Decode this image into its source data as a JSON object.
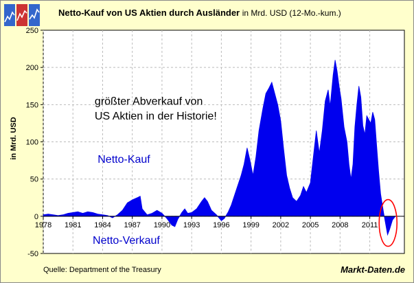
{
  "title": {
    "main": "Netto-Kauf von US Aktien durch Ausländer",
    "sub": "in Mrd. USD (12-Mo.-kum.)"
  },
  "source": "Quelle: Department of the Treasury",
  "brand": "Markt-Daten.de",
  "colors": {
    "background": "#ffffcc",
    "plot_bg": "#ffffff",
    "series": "#0000ee",
    "label": "#0000cc",
    "highlight": "#ff0000"
  },
  "chart_data": {
    "type": "area",
    "title": "Netto-Kauf von US Aktien durch Ausländer in Mrd. USD (12-Mo.-kum.)",
    "ylabel": "in Mrd. USD",
    "xlabel": "",
    "ylim": [
      -50,
      250
    ],
    "xlim": [
      1978,
      2014.5
    ],
    "yticks": [
      -50,
      0,
      50,
      100,
      150,
      200,
      250
    ],
    "xticks": [
      "1978",
      "1981",
      "1984",
      "1987",
      "1990",
      "1993",
      "1996",
      "1999",
      "2002",
      "2005",
      "2008",
      "2011"
    ],
    "grid": true,
    "annotations": [
      {
        "text": "größter Abverkauf von",
        "x": 1983.2,
        "y": 150
      },
      {
        "text": "US Aktien in der Historie!",
        "x": 1983.2,
        "y": 130
      },
      {
        "text": "Netto-Kauf",
        "x": 1983.5,
        "y": 72
      },
      {
        "text": "Netto-Verkauf",
        "x": 1983.0,
        "y": -37
      }
    ],
    "series": [
      {
        "points": [
          [
            1978.0,
            2
          ],
          [
            1978.5,
            3
          ],
          [
            1979.0,
            2
          ],
          [
            1979.5,
            1
          ],
          [
            1980.0,
            2
          ],
          [
            1980.5,
            4
          ],
          [
            1981.0,
            5
          ],
          [
            1981.5,
            6
          ],
          [
            1982.0,
            4
          ],
          [
            1982.5,
            6
          ],
          [
            1983.0,
            5
          ],
          [
            1983.5,
            3
          ],
          [
            1984.0,
            2
          ],
          [
            1984.5,
            1
          ],
          [
            1985.0,
            -2
          ],
          [
            1985.5,
            2
          ],
          [
            1986.0,
            8
          ],
          [
            1986.5,
            18
          ],
          [
            1987.0,
            22
          ],
          [
            1987.5,
            25
          ],
          [
            1987.8,
            27
          ],
          [
            1988.0,
            10
          ],
          [
            1988.5,
            2
          ],
          [
            1989.0,
            4
          ],
          [
            1989.5,
            8
          ],
          [
            1990.0,
            4
          ],
          [
            1990.5,
            -3
          ],
          [
            1991.0,
            -12
          ],
          [
            1991.3,
            -14
          ],
          [
            1991.6,
            -4
          ],
          [
            1992.0,
            5
          ],
          [
            1992.3,
            10
          ],
          [
            1992.6,
            4
          ],
          [
            1993.0,
            5
          ],
          [
            1993.5,
            10
          ],
          [
            1994.0,
            20
          ],
          [
            1994.3,
            25
          ],
          [
            1994.6,
            20
          ],
          [
            1995.0,
            8
          ],
          [
            1995.5,
            2
          ],
          [
            1996.0,
            -6
          ],
          [
            1996.3,
            -3
          ],
          [
            1996.7,
            6
          ],
          [
            1997.0,
            15
          ],
          [
            1997.5,
            35
          ],
          [
            1998.0,
            55
          ],
          [
            1998.3,
            70
          ],
          [
            1998.6,
            92
          ],
          [
            1998.9,
            75
          ],
          [
            1999.2,
            55
          ],
          [
            1999.5,
            80
          ],
          [
            1999.8,
            115
          ],
          [
            2000.2,
            145
          ],
          [
            2000.5,
            165
          ],
          [
            2000.8,
            172
          ],
          [
            2001.1,
            180
          ],
          [
            2001.4,
            165
          ],
          [
            2001.7,
            150
          ],
          [
            2002.0,
            128
          ],
          [
            2002.3,
            90
          ],
          [
            2002.6,
            55
          ],
          [
            2002.9,
            38
          ],
          [
            2003.2,
            25
          ],
          [
            2003.6,
            20
          ],
          [
            2004.0,
            28
          ],
          [
            2004.3,
            40
          ],
          [
            2004.6,
            32
          ],
          [
            2005.0,
            45
          ],
          [
            2005.3,
            80
          ],
          [
            2005.6,
            115
          ],
          [
            2005.9,
            85
          ],
          [
            2006.2,
            115
          ],
          [
            2006.5,
            155
          ],
          [
            2006.8,
            170
          ],
          [
            2007.0,
            148
          ],
          [
            2007.3,
            190
          ],
          [
            2007.5,
            210
          ],
          [
            2007.7,
            195
          ],
          [
            2007.9,
            175
          ],
          [
            2008.1,
            158
          ],
          [
            2008.4,
            120
          ],
          [
            2008.7,
            100
          ],
          [
            2008.9,
            70
          ],
          [
            2009.1,
            50
          ],
          [
            2009.3,
            70
          ],
          [
            2009.5,
            120
          ],
          [
            2009.7,
            150
          ],
          [
            2009.9,
            175
          ],
          [
            2010.1,
            160
          ],
          [
            2010.3,
            122
          ],
          [
            2010.5,
            110
          ],
          [
            2010.7,
            135
          ],
          [
            2010.9,
            130
          ],
          [
            2011.1,
            125
          ],
          [
            2011.3,
            140
          ],
          [
            2011.5,
            130
          ],
          [
            2011.7,
            95
          ],
          [
            2011.9,
            60
          ],
          [
            2012.1,
            30
          ],
          [
            2012.4,
            5
          ],
          [
            2012.6,
            -10
          ],
          [
            2012.8,
            -25
          ],
          [
            2013.0,
            -18
          ],
          [
            2013.3,
            -5
          ],
          [
            2013.6,
            0
          ]
        ]
      }
    ]
  }
}
